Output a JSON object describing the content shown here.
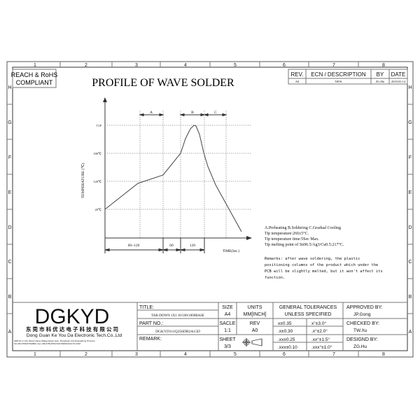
{
  "frame": {
    "columns": [
      "1",
      "2",
      "3",
      "4",
      "5",
      "6",
      "7",
      "8"
    ],
    "rows": [
      "H",
      "G",
      "F",
      "E",
      "D",
      "C",
      "B",
      "A"
    ]
  },
  "compliance": {
    "line1": "REACH & RoHS",
    "line2": "COMPLIANT"
  },
  "drawing_title": "PROFILE OF WAVE SOLDER",
  "revision_table": {
    "headers": [
      "REV.",
      "ECN / DESCRIPTION",
      "BY",
      "DATE"
    ],
    "rows": [
      [
        "A0",
        "NEW",
        "ZG.Hu",
        "2018.03.14"
      ]
    ]
  },
  "profile": {
    "y_axis_label": "TEMPERATURE (℃)",
    "x_axis_label": "TIME(Sec.)",
    "y_ticks": [
      "T1P",
      "180℃",
      "120℃",
      "20℃"
    ],
    "zones": [
      "A",
      "B",
      "C"
    ],
    "durations": [
      "60~120",
      "60",
      "120"
    ]
  },
  "notes": {
    "legend": "A.Preheating  B.Soldering  C.Gradual Cooling",
    "tip_temp": "Tip temperature:260±5°C.",
    "tip_time": "Tip temperature time:5Sec Max.",
    "melting": "Tip melting point of Sn96.5/Ag3/Cu0.5:217°C.",
    "remarks": [
      "Remarks: after wave soldering, the plastic",
      "positioning columns of the product  which under the",
      "PCB will be slightly melted, but it won't affect its",
      "function."
    ]
  },
  "company": {
    "logo": "DGKYD",
    "name_cn": "东 莞 市 科 优 达 电 子 科 技 有 限 公 司",
    "name_en": "Dong Guan Ke You Da Electronic Tech.Co.,Ltd",
    "address": "ADD:No.1 Lirle Street,Lifeng Village,Qingxi town, DongGuan City,GuangDong Province",
    "contact": "Tel:+86-0769-87334800, Fax:+86-0769-87947129  WWW.DGKYD.COM"
  },
  "title_block": {
    "title_label": "TITLE:",
    "title_value": "TAB-DOWN 1X1 10/100/1000BASE",
    "part_label": "PART NO.:",
    "part_value": "DGKYD111Q356DB2A15D",
    "remark_label": "REMARK:",
    "size_label": "SIZE",
    "size_value": "A4",
    "units_label": "UNITS",
    "units_value": "MM[INCH]",
    "scale_label": "SACLE",
    "scale_value": "1:1",
    "rev_label": "REV",
    "rev_value": "A0",
    "sheet_label": "SHEET",
    "sheet_value": "3/3",
    "tol_header1": "GENERAL TOLERANCES",
    "tol_header2": "UNLESS SPECIFIED",
    "tolerances": [
      [
        "x±0.35",
        "x°±3.0°"
      ],
      [
        ".x±0.30",
        ".x°±2.0°"
      ],
      [
        ".xx±0.25",
        ".xx°±1.5°"
      ],
      [
        ".xxx±0.10",
        ".xxx°±1.0°"
      ]
    ],
    "approved_label": "APPROVED BY:",
    "approved_value": "JP.Gong",
    "checked_label": "CHECKED BY:",
    "checked_value": "TW.Xu",
    "designed_label": "DESIGND BY:",
    "designed_value": "ZG.Hu"
  }
}
